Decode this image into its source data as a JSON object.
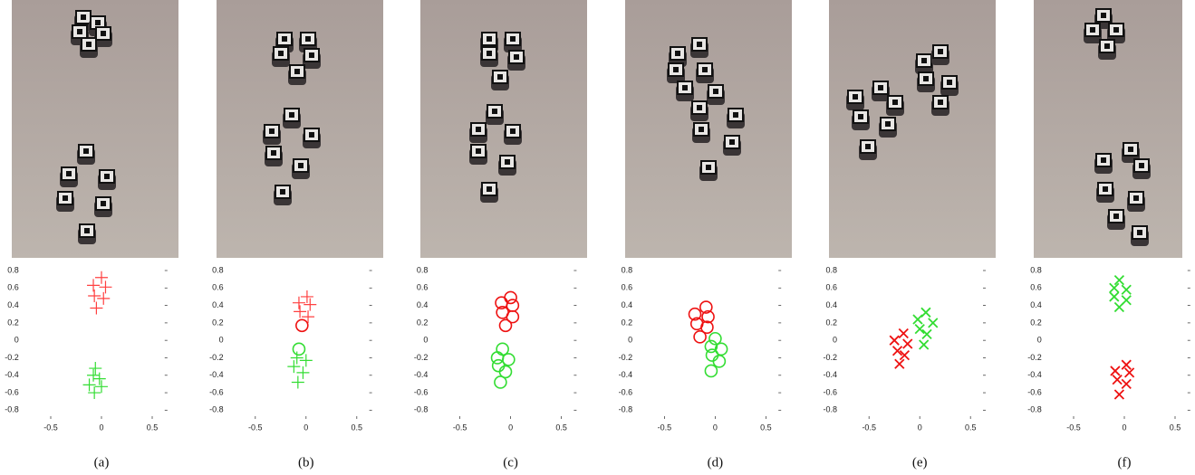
{
  "chart_data": [
    {
      "type": "scatter",
      "caption": "(a)",
      "xlim": [
        -0.85,
        0.65
      ],
      "ylim": [
        -0.9,
        0.8
      ],
      "xticks": [
        -0.5,
        0,
        0.5
      ],
      "yticks": [
        0.8,
        0.6,
        0.4,
        0.2,
        0,
        -0.2,
        -0.4,
        -0.6,
        -0.8
      ],
      "series": [
        {
          "color": "#ff4040",
          "marker": "+",
          "x": [
            0,
            -0.08,
            0.04,
            -0.07,
            0.02,
            -0.05
          ],
          "values": [
            0.72,
            0.63,
            0.61,
            0.51,
            0.48,
            0.37
          ]
        },
        {
          "color": "#33dd33",
          "marker": "+",
          "x": [
            -0.06,
            -0.08,
            -0.02,
            -0.12,
            0,
            -0.07
          ],
          "values": [
            -0.32,
            -0.4,
            -0.44,
            -0.51,
            -0.53,
            -0.6
          ]
        }
      ]
    },
    {
      "type": "scatter",
      "caption": "(b)",
      "xlim": [
        -0.85,
        0.65
      ],
      "ylim": [
        -0.9,
        0.8
      ],
      "xticks": [
        -0.5,
        0,
        0.5
      ],
      "yticks": [
        0.8,
        0.6,
        0.4,
        0.2,
        0,
        -0.2,
        -0.4,
        -0.6,
        -0.8
      ],
      "series": [
        {
          "color": "#ff4040",
          "marker": "+",
          "x": [
            0.01,
            -0.07,
            0.04,
            -0.06,
            0.02
          ],
          "values": [
            0.5,
            0.43,
            0.41,
            0.33,
            0.27
          ]
        },
        {
          "color": "#ee1111",
          "marker": "o",
          "x": [
            -0.04
          ],
          "values": [
            0.17
          ]
        },
        {
          "color": "#33dd33",
          "marker": "o",
          "x": [
            -0.07
          ],
          "values": [
            -0.1
          ]
        },
        {
          "color": "#33dd33",
          "marker": "+",
          "x": [
            -0.09,
            0,
            -0.12,
            -0.03,
            -0.08
          ],
          "values": [
            -0.2,
            -0.23,
            -0.3,
            -0.37,
            -0.48
          ]
        }
      ]
    },
    {
      "type": "scatter",
      "caption": "(c)",
      "xlim": [
        -0.85,
        0.65
      ],
      "ylim": [
        -0.9,
        0.8
      ],
      "xticks": [
        -0.5,
        0,
        0.5
      ],
      "yticks": [
        0.8,
        0.6,
        0.4,
        0.2,
        0,
        -0.2,
        -0.4,
        -0.6,
        -0.8
      ],
      "series": [
        {
          "color": "#ee1111",
          "marker": "o",
          "x": [
            0,
            -0.09,
            0.02,
            -0.08,
            0.02,
            -0.05
          ],
          "values": [
            0.49,
            0.43,
            0.4,
            0.32,
            0.27,
            0.17
          ]
        },
        {
          "color": "#33dd33",
          "marker": "o",
          "x": [
            -0.08,
            -0.13,
            -0.02,
            -0.12,
            -0.05,
            -0.1
          ],
          "values": [
            -0.1,
            -0.2,
            -0.22,
            -0.29,
            -0.36,
            -0.48
          ]
        }
      ]
    },
    {
      "type": "scatter",
      "caption": "(d)",
      "xlim": [
        -0.85,
        0.65
      ],
      "ylim": [
        -0.9,
        0.8
      ],
      "xticks": [
        -0.5,
        0,
        0.5
      ],
      "yticks": [
        0.8,
        0.6,
        0.4,
        0.2,
        0,
        -0.2,
        -0.4,
        -0.6,
        -0.8
      ],
      "series": [
        {
          "color": "#ee1111",
          "marker": "o",
          "x": [
            -0.09,
            -0.2,
            -0.07,
            -0.18,
            -0.08,
            -0.15
          ],
          "values": [
            0.38,
            0.3,
            0.27,
            0.19,
            0.15,
            0.04
          ]
        },
        {
          "color": "#33dd33",
          "marker": "o",
          "x": [
            0,
            -0.04,
            0.06,
            -0.03,
            0.04,
            -0.04
          ],
          "values": [
            0.02,
            -0.07,
            -0.1,
            -0.17,
            -0.24,
            -0.35
          ]
        }
      ]
    },
    {
      "type": "scatter",
      "caption": "(e)",
      "xlim": [
        -0.85,
        0.65
      ],
      "ylim": [
        -0.9,
        0.8
      ],
      "xticks": [
        -0.5,
        0,
        0.5
      ],
      "yticks": [
        0.8,
        0.6,
        0.4,
        0.2,
        0,
        -0.2,
        -0.4,
        -0.6,
        -0.8
      ],
      "series": [
        {
          "color": "#33dd33",
          "marker": "x",
          "x": [
            0.06,
            -0.02,
            0.13,
            0,
            0.07,
            0.04
          ],
          "values": [
            0.32,
            0.24,
            0.2,
            0.13,
            0.07,
            -0.05
          ]
        },
        {
          "color": "#ee1111",
          "marker": "x",
          "x": [
            -0.16,
            -0.25,
            -0.12,
            -0.22,
            -0.15,
            -0.2
          ],
          "values": [
            0.08,
            0,
            -0.04,
            -0.12,
            -0.17,
            -0.27
          ]
        }
      ]
    },
    {
      "type": "scatter",
      "caption": "(f)",
      "xlim": [
        -0.85,
        0.65
      ],
      "ylim": [
        -0.9,
        0.8
      ],
      "xticks": [
        -0.5,
        0,
        0.5
      ],
      "yticks": [
        0.8,
        0.6,
        0.4,
        0.2,
        0,
        -0.2,
        -0.4,
        -0.6,
        -0.8
      ],
      "series": [
        {
          "color": "#33dd33",
          "marker": "x",
          "x": [
            -0.05,
            -0.1,
            0.02,
            -0.1,
            0.02,
            -0.05
          ],
          "values": [
            0.69,
            0.6,
            0.58,
            0.5,
            0.46,
            0.38
          ]
        },
        {
          "color": "#ee1111",
          "marker": "x",
          "x": [
            0.02,
            -0.09,
            0.05,
            -0.07,
            0.02,
            -0.05
          ],
          "values": [
            -0.28,
            -0.35,
            -0.37,
            -0.45,
            -0.5,
            -0.62
          ]
        }
      ]
    }
  ]
}
